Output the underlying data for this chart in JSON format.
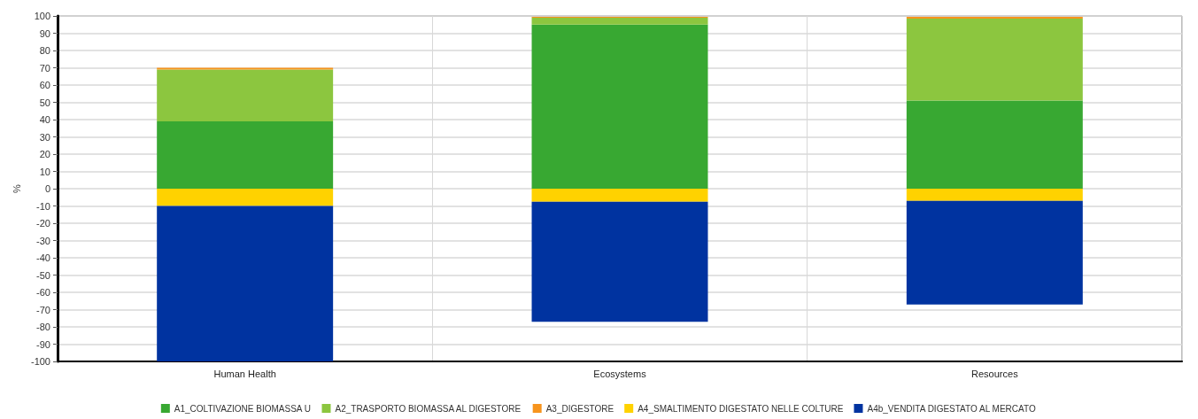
{
  "chart_data": {
    "type": "bar",
    "stacked": true,
    "ylabel": "%",
    "categories": [
      "Human Health",
      "Ecosystems",
      "Resources"
    ],
    "series": [
      {
        "name": "A1_COLTIVAZIONE BIOMASSA U",
        "color": "#38a832",
        "values": [
          39,
          95,
          51
        ]
      },
      {
        "name": "A2_TRASPORTO BIOMASSA AL DIGESTORE",
        "color": "#8cc63f",
        "values": [
          30,
          4,
          47.5
        ]
      },
      {
        "name": "A3_DIGESTORE",
        "color": "#f7941d",
        "values": [
          1,
          0.5,
          1
        ]
      },
      {
        "name": "A4_SMALTIMENTO DIGESTATO NELLE COLTURE",
        "color": "#ffd200",
        "values": [
          -10,
          -7.5,
          -7
        ]
      },
      {
        "name": "A4b_VENDITA DIGESTATO AL MERCATO",
        "color": "#0033a0",
        "values": [
          -90,
          -69.5,
          -60
        ]
      }
    ],
    "ylim": [
      -100,
      100
    ],
    "yticks": [
      -100,
      -90,
      -80,
      -70,
      -60,
      -50,
      -40,
      -30,
      -20,
      -10,
      0,
      10,
      20,
      30,
      40,
      50,
      60,
      70,
      80,
      90,
      100
    ],
    "grid": true,
    "legend": "bottom"
  }
}
